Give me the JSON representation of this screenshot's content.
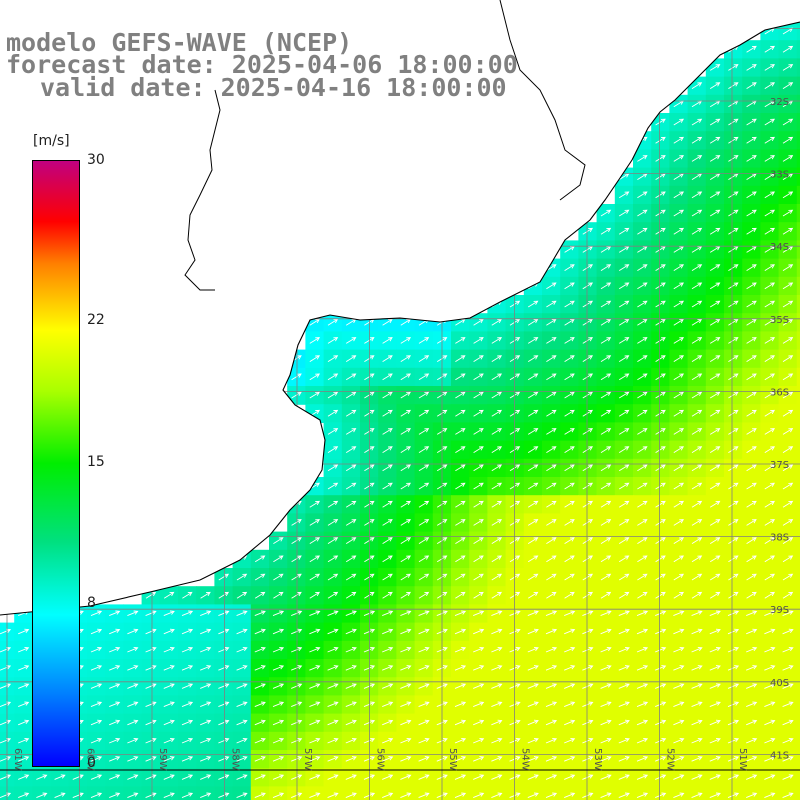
{
  "title": {
    "line1": "modelo GEFS-WAVE (NCEP)",
    "line2": "forecast date: 2025-04-06 18:00:00",
    "line3": "valid date: 2025-04-16 18:00:00"
  },
  "colorbar": {
    "unit": "[m/s]",
    "ticks": [
      {
        "value": 30,
        "label": "30"
      },
      {
        "value": 22,
        "label": "22"
      },
      {
        "value": 15,
        "label": "15"
      },
      {
        "value": 8,
        "label": "8"
      },
      {
        "value": 0,
        "label": "0"
      }
    ],
    "min": 0,
    "max": 30
  },
  "chart_data": {
    "type": "heatmap",
    "variable": "wind speed",
    "unit": "[m/s]",
    "lon_range": [
      -61.5,
      -49.5
    ],
    "lat_range": [
      -41.3,
      -30.5
    ],
    "lat_labels": [
      "32S",
      "33S",
      "34S",
      "35S",
      "36S",
      "37S",
      "38S",
      "39S",
      "40S",
      "41S"
    ],
    "lon_labels": [
      "61W",
      "60W",
      "59W",
      "58W",
      "57W",
      "56W",
      "55W",
      "54W",
      "53W",
      "52W",
      "51W"
    ],
    "colors": {
      "land": "#ffffff",
      "coast": "#000000",
      "grid": "#808080"
    }
  }
}
